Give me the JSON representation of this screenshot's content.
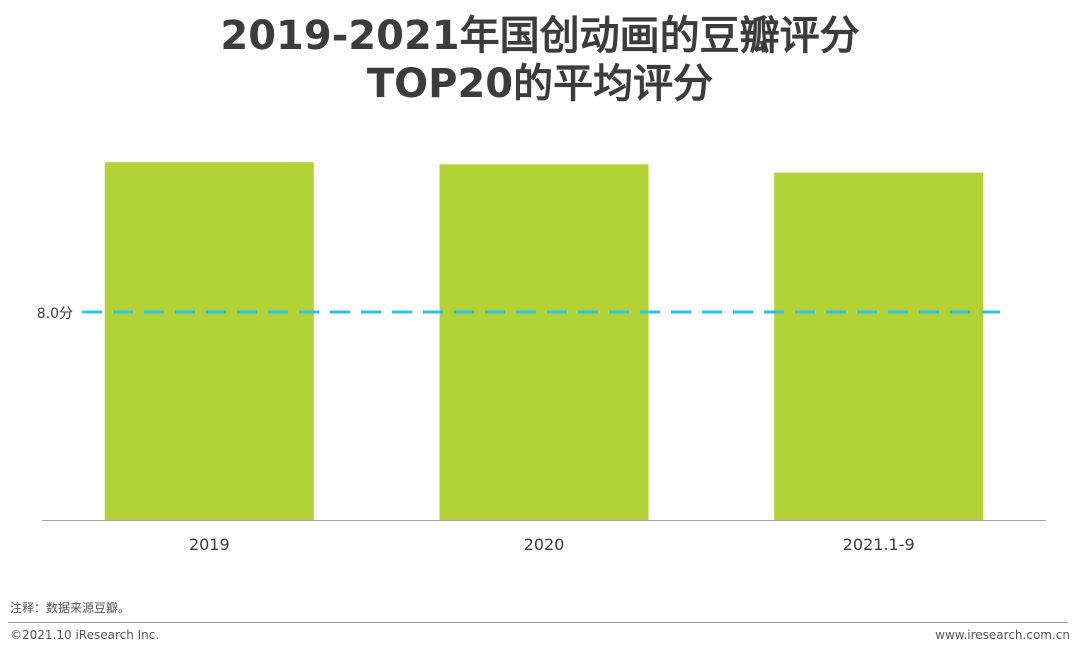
{
  "chart_data": {
    "type": "bar",
    "title_lines": [
      "2019-2021年国创动画的豆瓣评分",
      "TOP20的平均评分"
    ],
    "categories": [
      "2019",
      "2020",
      "2021.1-9"
    ],
    "values": [
      8.72,
      8.71,
      8.67
    ],
    "ylim": [
      7.0,
      9.0
    ],
    "reference_line": {
      "value": 8.0,
      "label": "8.0分",
      "color": "#29C3E6",
      "style": "dashed"
    },
    "bar_color": "#B2D235",
    "grid": false,
    "legend": "none"
  },
  "footer": {
    "note": "注释：数据来源豆瓣。",
    "copyright": "©2021.10 iResearch Inc.",
    "website": "www.iresearch.com.cn"
  }
}
